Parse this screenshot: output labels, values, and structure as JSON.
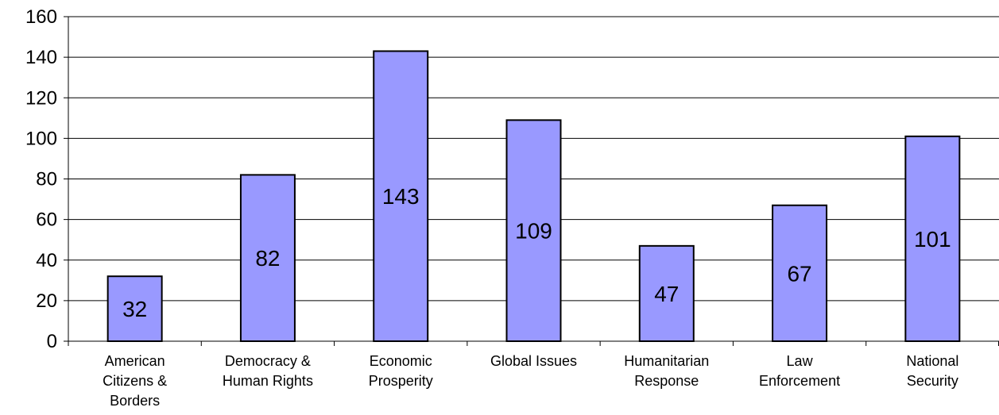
{
  "chart_data": {
    "type": "bar",
    "categories": [
      [
        "American",
        "Citizens &",
        "Borders"
      ],
      [
        "Democracy &",
        "Human Rights"
      ],
      [
        "Economic",
        "Prosperity"
      ],
      [
        "Global Issues"
      ],
      [
        "Humanitarian",
        "Response"
      ],
      [
        "Law",
        "Enforcement"
      ],
      [
        "National",
        "Security"
      ]
    ],
    "values": [
      32,
      82,
      143,
      109,
      47,
      67,
      101
    ],
    "ylim": [
      0,
      160
    ],
    "yticks": [
      0,
      20,
      40,
      60,
      80,
      100,
      120,
      140,
      160
    ],
    "grid": true,
    "legend": "none",
    "title": "",
    "xlabel": "",
    "ylabel": "",
    "colors": {
      "bar_fill": "#9999ff",
      "bar_stroke": "#000000",
      "gridline": "#000000",
      "axis": "#000000"
    }
  }
}
